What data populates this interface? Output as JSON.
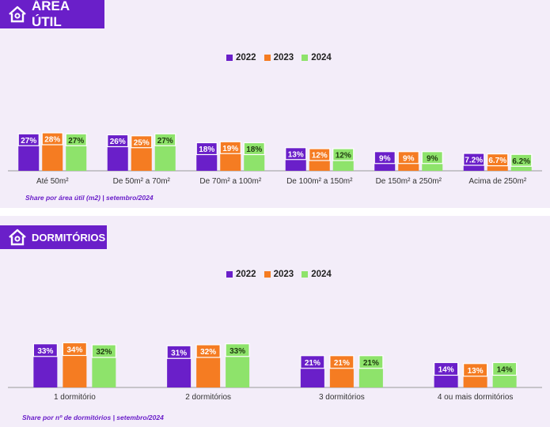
{
  "colors": {
    "accent": "#6a1fc9",
    "series": [
      "#6a1fc9",
      "#f57c22",
      "#8ee36b"
    ],
    "label_bg": [
      "#6a1fc9",
      "#f57c22",
      "#8ee36b"
    ],
    "label_fg": [
      "#ffffff",
      "#ffffff",
      "#1f3a10"
    ]
  },
  "sections": {
    "area": {
      "title": "ÁREA ÚTIL",
      "icon": "house-icon",
      "note": "Share por área útil (m2) | setembro/2024"
    },
    "dorm": {
      "title": "DORMITÓRIOS",
      "icon": "house-icon",
      "note": "Share por nº de dormitórios | setembro/2024"
    }
  },
  "legend": [
    "2022",
    "2023",
    "2024"
  ],
  "chart_data": [
    {
      "type": "bar",
      "title": "ÁREA ÚTIL",
      "categories": [
        "Até 50m²",
        "De 50m² a 70m²",
        "De 70m² a 100m²",
        "De 100m² a 150m²",
        "De 150m² a 250m²",
        "Acima de 250m²"
      ],
      "series": [
        {
          "name": "2022",
          "values": [
            27,
            26,
            18,
            13,
            9,
            7.2
          ],
          "labels": [
            "27%",
            "26%",
            "18%",
            "13%",
            "9%",
            "7.2%"
          ]
        },
        {
          "name": "2023",
          "values": [
            28,
            25,
            19,
            12,
            9,
            6.7
          ],
          "labels": [
            "28%",
            "25%",
            "19%",
            "12%",
            "9%",
            "6.7%"
          ]
        },
        {
          "name": "2024",
          "values": [
            27,
            27,
            18,
            12,
            9,
            6.2
          ],
          "labels": [
            "27%",
            "27%",
            "18%",
            "12%",
            "9%",
            "6.2%"
          ]
        }
      ],
      "legend_position": "top-center"
    },
    {
      "type": "bar",
      "title": "DORMITÓRIOS",
      "categories": [
        "1 dormitório",
        "2 dormitórios",
        "3 dormitórios",
        "4 ou mais dormitórios"
      ],
      "series": [
        {
          "name": "2022",
          "values": [
            33,
            31,
            21,
            14
          ],
          "labels": [
            "33%",
            "31%",
            "21%",
            "14%"
          ]
        },
        {
          "name": "2023",
          "values": [
            34,
            32,
            21,
            13
          ],
          "labels": [
            "34%",
            "32%",
            "21%",
            "13%"
          ]
        },
        {
          "name": "2024",
          "values": [
            32,
            33,
            21,
            14
          ],
          "labels": [
            "32%",
            "33%",
            "21%",
            "14%"
          ]
        }
      ],
      "legend_position": "top-center"
    }
  ]
}
